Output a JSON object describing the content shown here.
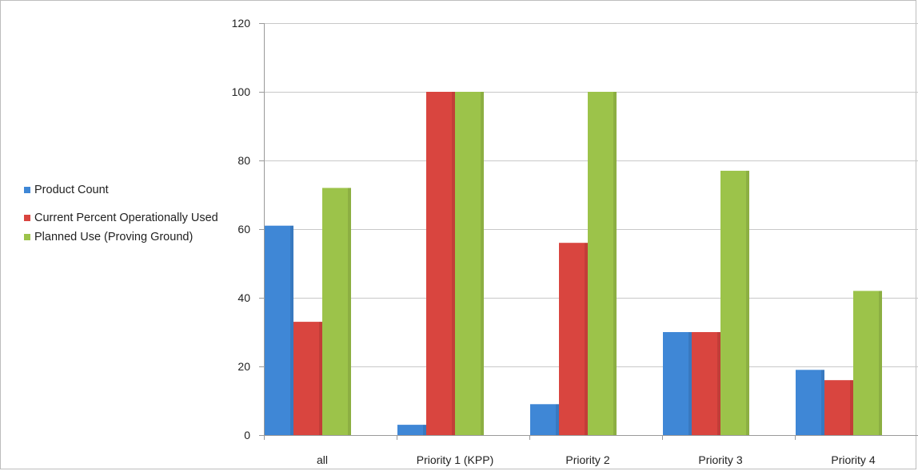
{
  "chart_data": {
    "type": "bar",
    "categories": [
      "all",
      "Priority 1 (KPP)",
      "Priority 2",
      "Priority 3",
      "Priority 4"
    ],
    "series": [
      {
        "name": "Product Count",
        "values": [
          61,
          3,
          9,
          30,
          19
        ],
        "color": "#3f87d6"
      },
      {
        "name": "Current Percent Operationally Used",
        "values": [
          33,
          100,
          56,
          30,
          16
        ],
        "color": "#d9453f"
      },
      {
        "name": "Planned Use (Proving Ground)",
        "values": [
          72,
          100,
          100,
          77,
          42
        ],
        "color": "#9cc34a"
      }
    ],
    "ylim": [
      0,
      120
    ],
    "yticks": [
      0,
      20,
      40,
      60,
      80,
      100,
      120
    ],
    "grid": true,
    "legend_position": "left"
  },
  "legend": [
    {
      "label": "Product Count",
      "color": "#3f87d6"
    },
    {
      "label": "Current Percent Operationally Used",
      "color": "#d9453f"
    },
    {
      "label": "Planned Use (Proving Ground)",
      "color": "#9cc34a"
    }
  ]
}
